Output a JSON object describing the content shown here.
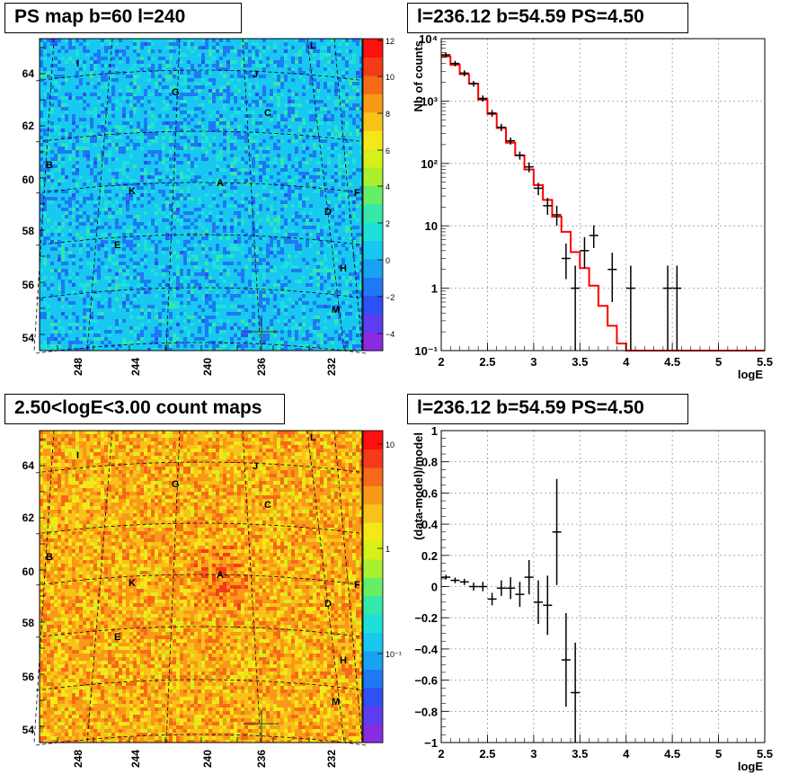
{
  "panels": {
    "ps_map": {
      "title": "PS map b=60 l=240",
      "y_ticks": [
        "64",
        "62",
        "60",
        "58",
        "56",
        "54"
      ],
      "x_ticks": [
        "248",
        "244",
        "240",
        "236",
        "232"
      ],
      "colorbar_ticks": [
        "12",
        "10",
        "8",
        "6",
        "4",
        "2",
        "0",
        "−2",
        "−4"
      ],
      "regions": [
        {
          "label": "L"
        },
        {
          "label": "I"
        },
        {
          "label": "J"
        },
        {
          "label": "G"
        },
        {
          "label": "C"
        },
        {
          "label": "B"
        },
        {
          "label": "K"
        },
        {
          "label": "A"
        },
        {
          "label": "F"
        },
        {
          "label": "D"
        },
        {
          "label": "E"
        },
        {
          "label": "H"
        },
        {
          "label": "M"
        }
      ]
    },
    "count_map": {
      "title": "2.50<logE<3.00 count maps",
      "y_ticks": [
        "64",
        "62",
        "60",
        "58",
        "56",
        "54"
      ],
      "x_ticks": [
        "248",
        "244",
        "240",
        "236",
        "232"
      ],
      "colorbar_ticks": [
        "10",
        "1",
        "10⁻¹"
      ],
      "regions": [
        {
          "label": "L"
        },
        {
          "label": "I"
        },
        {
          "label": "J"
        },
        {
          "label": "G"
        },
        {
          "label": "C"
        },
        {
          "label": "B"
        },
        {
          "label": "K"
        },
        {
          "label": "A"
        },
        {
          "label": "F"
        },
        {
          "label": "D"
        },
        {
          "label": "E"
        },
        {
          "label": "H"
        },
        {
          "label": "M"
        }
      ]
    },
    "spectrum": {
      "title": "l=236.12 b=54.59 PS=4.50"
    },
    "residual": {
      "title": "l=236.12 b=54.59 PS=4.50"
    }
  },
  "chart_data": [
    {
      "type": "heatmap",
      "name": "ps_map",
      "title": "PS map b=60 l=240",
      "xlabel": "",
      "ylabel": "",
      "x_ticks": [
        248,
        244,
        240,
        236,
        232
      ],
      "y_ticks": [
        54,
        56,
        58,
        60,
        62,
        64
      ],
      "color_range": [
        -5,
        12
      ],
      "colorbar_ticks": [
        -4,
        -2,
        0,
        2,
        4,
        6,
        8,
        10,
        12
      ],
      "dominant_value": 0
    },
    {
      "type": "heatmap",
      "name": "count_map",
      "title": "2.50<logE<3.00 count maps",
      "x_ticks": [
        248,
        244,
        240,
        236,
        232
      ],
      "y_ticks": [
        54,
        56,
        58,
        60,
        62,
        64
      ],
      "color_scale": "log",
      "colorbar_ticks": [
        0.1,
        1,
        10
      ]
    },
    {
      "type": "line",
      "name": "spectrum",
      "title": "l=236.12 b=54.59 PS=4.50",
      "xlabel": "logE",
      "ylabel": "Nb of counts",
      "xlim": [
        2,
        5.5
      ],
      "ylim": [
        0.1,
        10000
      ],
      "yscale": "log",
      "x_ticks": [
        2,
        2.5,
        3,
        3.5,
        4,
        4.5,
        5,
        5.5
      ],
      "y_ticks": [
        "10⁻¹",
        "1",
        "10",
        "10²",
        "10³",
        "10⁴"
      ],
      "grid": true,
      "model_bin_edges": [
        2.0,
        2.1,
        2.2,
        2.3,
        2.4,
        2.5,
        2.6,
        2.7,
        2.8,
        2.9,
        3.0,
        3.1,
        3.2,
        3.3,
        3.4,
        3.5,
        3.6,
        3.7,
        3.8,
        3.9,
        4.0,
        4.1,
        4.2,
        4.3,
        4.4,
        4.5,
        4.6,
        4.7,
        4.8,
        4.9,
        5.0,
        5.1,
        5.2,
        5.3,
        5.4,
        5.5
      ],
      "model_values": [
        5200,
        3800,
        2700,
        1900,
        1050,
        620,
        370,
        215,
        135,
        80,
        45,
        26,
        14,
        8,
        3.8,
        2.1,
        1.1,
        0.52,
        0.25,
        0.13,
        0.1,
        0.1,
        0.1,
        0.1,
        0.1,
        0.1,
        0.1,
        0.1,
        0.1,
        0.1,
        0.1,
        0.1,
        0.1,
        0.1,
        0.1
      ],
      "data_points": [
        {
          "x": 2.05,
          "y": 5500,
          "lo": 5000,
          "hi": 6000
        },
        {
          "x": 2.15,
          "y": 4000,
          "lo": 3600,
          "hi": 4400
        },
        {
          "x": 2.25,
          "y": 2800,
          "lo": 2500,
          "hi": 3100
        },
        {
          "x": 2.35,
          "y": 1900,
          "lo": 1700,
          "hi": 2100
        },
        {
          "x": 2.45,
          "y": 1100,
          "lo": 980,
          "hi": 1230
        },
        {
          "x": 2.55,
          "y": 640,
          "lo": 560,
          "hi": 720
        },
        {
          "x": 2.65,
          "y": 380,
          "lo": 330,
          "hi": 430
        },
        {
          "x": 2.75,
          "y": 230,
          "lo": 200,
          "hi": 260
        },
        {
          "x": 2.85,
          "y": 135,
          "lo": 115,
          "hi": 155
        },
        {
          "x": 2.95,
          "y": 88,
          "lo": 72,
          "hi": 104
        },
        {
          "x": 3.05,
          "y": 40,
          "lo": 31,
          "hi": 49
        },
        {
          "x": 3.15,
          "y": 21,
          "lo": 15,
          "hi": 28
        },
        {
          "x": 3.25,
          "y": 15,
          "lo": 10,
          "hi": 21
        },
        {
          "x": 3.35,
          "y": 3,
          "lo": 1.4,
          "hi": 5.2
        },
        {
          "x": 3.45,
          "y": 1,
          "lo": 0.1,
          "hi": 2.3
        },
        {
          "x": 3.55,
          "y": 4,
          "lo": 2.1,
          "hi": 6.6
        },
        {
          "x": 3.65,
          "y": 7,
          "lo": 4.4,
          "hi": 10.2
        },
        {
          "x": 3.85,
          "y": 2,
          "lo": 0.6,
          "hi": 3.7
        },
        {
          "x": 4.05,
          "y": 1,
          "lo": 0.1,
          "hi": 2.3
        },
        {
          "x": 4.45,
          "y": 1,
          "lo": 0.1,
          "hi": 2.3
        },
        {
          "x": 4.55,
          "y": 1,
          "lo": 0.1,
          "hi": 2.3
        }
      ],
      "model_color": "#ff0000",
      "data_color": "#000000"
    },
    {
      "type": "scatter",
      "name": "residual",
      "title": "l=236.12 b=54.59 PS=4.50",
      "xlabel": "logE",
      "ylabel": "(data-model)/model",
      "xlim": [
        2,
        5.5
      ],
      "ylim": [
        -1,
        1
      ],
      "x_ticks": [
        2,
        2.5,
        3,
        3.5,
        4,
        4.5,
        5,
        5.5
      ],
      "y_ticks": [
        -1,
        -0.8,
        -0.6,
        -0.4,
        -0.2,
        0,
        0.2,
        0.4,
        0.6,
        0.8,
        1
      ],
      "grid": true,
      "points": [
        {
          "x": 2.05,
          "y": 0.06,
          "err": 0.015
        },
        {
          "x": 2.15,
          "y": 0.04,
          "err": 0.018
        },
        {
          "x": 2.25,
          "y": 0.03,
          "err": 0.02
        },
        {
          "x": 2.35,
          "y": 0.0,
          "err": 0.025
        },
        {
          "x": 2.45,
          "y": 0.0,
          "err": 0.03
        },
        {
          "x": 2.55,
          "y": -0.08,
          "err": 0.04
        },
        {
          "x": 2.65,
          "y": -0.01,
          "err": 0.05
        },
        {
          "x": 2.75,
          "y": -0.01,
          "err": 0.07
        },
        {
          "x": 2.85,
          "y": -0.05,
          "err": 0.08
        },
        {
          "x": 2.95,
          "y": 0.06,
          "err": 0.11
        },
        {
          "x": 3.05,
          "y": -0.1,
          "err": 0.14
        },
        {
          "x": 3.15,
          "y": -0.12,
          "err": 0.19
        },
        {
          "x": 3.25,
          "y": 0.35,
          "err": 0.34
        },
        {
          "x": 3.35,
          "y": -0.47,
          "err": 0.3
        },
        {
          "x": 3.45,
          "y": -0.68,
          "err": 0.32
        }
      ]
    }
  ]
}
